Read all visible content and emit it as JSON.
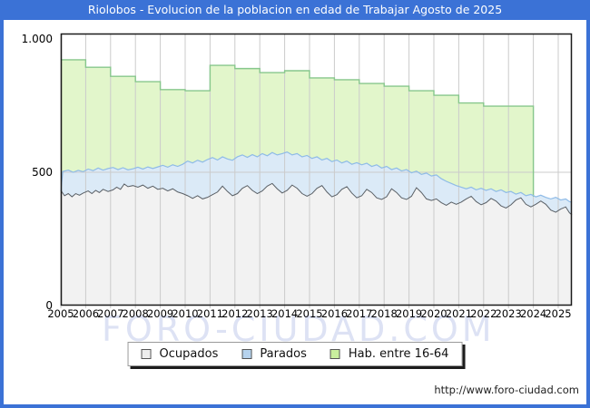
{
  "title": "Riolobos - Evolucion de la poblacion en edad de Trabajar Agosto de 2025",
  "watermark": "FORO-CIUDAD.COM",
  "footer_url": "http://www.foro-ciudad.com",
  "colors": {
    "titlebar_bg": "#3b72d6",
    "frame_border": "#3b72d6",
    "grid": "#cbcbcb",
    "plot_border": "#1a1a1a",
    "watermark_text": "#dde2f4",
    "hab_fill": "#e2f6cb",
    "hab_stroke": "#87c78c",
    "parados_fill": "#dbeaf7",
    "parados_stroke": "#8fbbe7",
    "ocupados_fill": "#f2f2f2",
    "ocupados_stroke": "#5a6066",
    "legend_swatch_ocupados": "#ededed",
    "legend_swatch_parados": "#b6d3ee",
    "legend_swatch_hab": "#c9ef9e"
  },
  "chart_data": {
    "type": "area",
    "title": "Riolobos - Evolucion de la poblacion en edad de Trabajar Agosto de 2025",
    "xlabel": "",
    "ylabel": "",
    "x_domain": [
      2005,
      2025.55
    ],
    "ylim": [
      0,
      1020
    ],
    "grid": "vertical-per-year-plus-500-line",
    "legend_position": "bottom-center",
    "y_ticks": [
      {
        "value": 0,
        "label": "0"
      },
      {
        "value": 500,
        "label": "500"
      },
      {
        "value": 1000,
        "label": "1.000"
      }
    ],
    "x_tick_years": [
      "2005",
      "2006",
      "2007",
      "2008",
      "2009",
      "2010",
      "2011",
      "2012",
      "2013",
      "2014",
      "2015",
      "2016",
      "2017",
      "2018",
      "2019",
      "2020",
      "2021",
      "2022",
      "2023",
      "2024",
      "2025"
    ],
    "legend": [
      {
        "label": "Ocupados"
      },
      {
        "label": "Parados"
      },
      {
        "label": "Hab. entre 16-64"
      }
    ],
    "series": {
      "hab_16_64": {
        "name": "Hab. entre 16-64",
        "style": "yearly-steps",
        "ends_at_year": 2024,
        "years": [
          2005,
          2006,
          2007,
          2008,
          2009,
          2010,
          2011,
          2012,
          2013,
          2014,
          2015,
          2016,
          2017,
          2018,
          2019,
          2020,
          2021,
          2022,
          2023
        ],
        "values": [
          922,
          894,
          860,
          840,
          810,
          806,
          901,
          889,
          874,
          881,
          854,
          847,
          833,
          823,
          806,
          789,
          760,
          748,
          748
        ]
      },
      "ocupados_mas_parados": {
        "name": "Parados (top of stacked band: Ocupados + Parados)",
        "style": "monthly-line",
        "points": [
          [
            2005.0,
            430
          ],
          [
            2005.08,
            503
          ],
          [
            2005.3,
            508
          ],
          [
            2005.5,
            500
          ],
          [
            2005.7,
            507
          ],
          [
            2005.9,
            502
          ],
          [
            2006.1,
            512
          ],
          [
            2006.3,
            506
          ],
          [
            2006.5,
            516
          ],
          [
            2006.7,
            508
          ],
          [
            2006.9,
            514
          ],
          [
            2007.1,
            518
          ],
          [
            2007.3,
            510
          ],
          [
            2007.5,
            517
          ],
          [
            2007.7,
            509
          ],
          [
            2007.9,
            513
          ],
          [
            2008.1,
            519
          ],
          [
            2008.3,
            512
          ],
          [
            2008.5,
            520
          ],
          [
            2008.7,
            514
          ],
          [
            2008.9,
            520
          ],
          [
            2009.1,
            526
          ],
          [
            2009.3,
            519
          ],
          [
            2009.5,
            528
          ],
          [
            2009.7,
            522
          ],
          [
            2009.9,
            530
          ],
          [
            2010.1,
            542
          ],
          [
            2010.3,
            535
          ],
          [
            2010.5,
            545
          ],
          [
            2010.7,
            538
          ],
          [
            2010.9,
            548
          ],
          [
            2011.1,
            555
          ],
          [
            2011.3,
            546
          ],
          [
            2011.5,
            558
          ],
          [
            2011.7,
            550
          ],
          [
            2011.9,
            545
          ],
          [
            2012.1,
            558
          ],
          [
            2012.3,
            565
          ],
          [
            2012.5,
            556
          ],
          [
            2012.7,
            566
          ],
          [
            2012.9,
            558
          ],
          [
            2013.1,
            570
          ],
          [
            2013.3,
            562
          ],
          [
            2013.5,
            574
          ],
          [
            2013.7,
            565
          ],
          [
            2013.9,
            570
          ],
          [
            2014.1,
            576
          ],
          [
            2014.3,
            565
          ],
          [
            2014.5,
            570
          ],
          [
            2014.7,
            558
          ],
          [
            2014.9,
            563
          ],
          [
            2015.1,
            552
          ],
          [
            2015.3,
            558
          ],
          [
            2015.5,
            546
          ],
          [
            2015.7,
            552
          ],
          [
            2015.9,
            540
          ],
          [
            2016.1,
            546
          ],
          [
            2016.3,
            535
          ],
          [
            2016.5,
            542
          ],
          [
            2016.7,
            530
          ],
          [
            2016.9,
            536
          ],
          [
            2017.1,
            528
          ],
          [
            2017.3,
            534
          ],
          [
            2017.5,
            522
          ],
          [
            2017.7,
            528
          ],
          [
            2017.9,
            516
          ],
          [
            2018.1,
            522
          ],
          [
            2018.3,
            510
          ],
          [
            2018.5,
            516
          ],
          [
            2018.7,
            505
          ],
          [
            2018.9,
            510
          ],
          [
            2019.1,
            498
          ],
          [
            2019.3,
            504
          ],
          [
            2019.5,
            492
          ],
          [
            2019.7,
            497
          ],
          [
            2019.9,
            486
          ],
          [
            2020.1,
            490
          ],
          [
            2020.3,
            476
          ],
          [
            2020.5,
            466
          ],
          [
            2020.7,
            458
          ],
          [
            2020.9,
            450
          ],
          [
            2021.1,
            444
          ],
          [
            2021.3,
            438
          ],
          [
            2021.5,
            444
          ],
          [
            2021.7,
            434
          ],
          [
            2021.9,
            440
          ],
          [
            2022.1,
            432
          ],
          [
            2022.3,
            438
          ],
          [
            2022.5,
            428
          ],
          [
            2022.7,
            434
          ],
          [
            2022.9,
            424
          ],
          [
            2023.1,
            428
          ],
          [
            2023.3,
            418
          ],
          [
            2023.5,
            424
          ],
          [
            2023.7,
            412
          ],
          [
            2023.9,
            417
          ],
          [
            2024.1,
            408
          ],
          [
            2024.3,
            414
          ],
          [
            2024.5,
            406
          ],
          [
            2024.7,
            400
          ],
          [
            2024.9,
            406
          ],
          [
            2025.1,
            396
          ],
          [
            2025.3,
            400
          ],
          [
            2025.45,
            390
          ],
          [
            2025.55,
            387
          ]
        ]
      },
      "ocupados": {
        "name": "Ocupados",
        "style": "monthly-line",
        "points": [
          [
            2005.0,
            432
          ],
          [
            2005.15,
            412
          ],
          [
            2005.3,
            420
          ],
          [
            2005.45,
            408
          ],
          [
            2005.6,
            420
          ],
          [
            2005.75,
            414
          ],
          [
            2005.9,
            422
          ],
          [
            2006.1,
            430
          ],
          [
            2006.25,
            420
          ],
          [
            2006.4,
            432
          ],
          [
            2006.55,
            424
          ],
          [
            2006.7,
            436
          ],
          [
            2006.9,
            428
          ],
          [
            2007.1,
            434
          ],
          [
            2007.25,
            444
          ],
          [
            2007.4,
            436
          ],
          [
            2007.55,
            456
          ],
          [
            2007.7,
            446
          ],
          [
            2007.9,
            450
          ],
          [
            2008.1,
            444
          ],
          [
            2008.3,
            452
          ],
          [
            2008.5,
            440
          ],
          [
            2008.7,
            448
          ],
          [
            2008.9,
            436
          ],
          [
            2009.1,
            440
          ],
          [
            2009.3,
            430
          ],
          [
            2009.5,
            438
          ],
          [
            2009.7,
            426
          ],
          [
            2009.9,
            420
          ],
          [
            2010.1,
            412
          ],
          [
            2010.3,
            402
          ],
          [
            2010.5,
            412
          ],
          [
            2010.7,
            400
          ],
          [
            2010.9,
            406
          ],
          [
            2011.1,
            416
          ],
          [
            2011.3,
            426
          ],
          [
            2011.5,
            448
          ],
          [
            2011.7,
            428
          ],
          [
            2011.9,
            412
          ],
          [
            2012.1,
            420
          ],
          [
            2012.3,
            440
          ],
          [
            2012.5,
            450
          ],
          [
            2012.7,
            432
          ],
          [
            2012.9,
            420
          ],
          [
            2013.1,
            430
          ],
          [
            2013.3,
            448
          ],
          [
            2013.5,
            458
          ],
          [
            2013.7,
            438
          ],
          [
            2013.9,
            422
          ],
          [
            2014.1,
            432
          ],
          [
            2014.3,
            452
          ],
          [
            2014.5,
            440
          ],
          [
            2014.7,
            420
          ],
          [
            2014.9,
            410
          ],
          [
            2015.1,
            420
          ],
          [
            2015.3,
            440
          ],
          [
            2015.5,
            450
          ],
          [
            2015.7,
            426
          ],
          [
            2015.9,
            408
          ],
          [
            2016.1,
            416
          ],
          [
            2016.3,
            436
          ],
          [
            2016.5,
            446
          ],
          [
            2016.7,
            422
          ],
          [
            2016.9,
            404
          ],
          [
            2017.1,
            412
          ],
          [
            2017.3,
            436
          ],
          [
            2017.5,
            424
          ],
          [
            2017.7,
            404
          ],
          [
            2017.9,
            398
          ],
          [
            2018.1,
            408
          ],
          [
            2018.3,
            438
          ],
          [
            2018.5,
            424
          ],
          [
            2018.7,
            404
          ],
          [
            2018.9,
            398
          ],
          [
            2019.1,
            410
          ],
          [
            2019.3,
            442
          ],
          [
            2019.5,
            424
          ],
          [
            2019.7,
            400
          ],
          [
            2019.9,
            394
          ],
          [
            2020.1,
            400
          ],
          [
            2020.3,
            386
          ],
          [
            2020.5,
            376
          ],
          [
            2020.7,
            388
          ],
          [
            2020.9,
            380
          ],
          [
            2021.1,
            388
          ],
          [
            2021.3,
            400
          ],
          [
            2021.5,
            410
          ],
          [
            2021.7,
            390
          ],
          [
            2021.9,
            378
          ],
          [
            2022.1,
            386
          ],
          [
            2022.3,
            402
          ],
          [
            2022.5,
            392
          ],
          [
            2022.7,
            374
          ],
          [
            2022.9,
            366
          ],
          [
            2023.1,
            378
          ],
          [
            2023.3,
            396
          ],
          [
            2023.5,
            404
          ],
          [
            2023.7,
            380
          ],
          [
            2023.9,
            370
          ],
          [
            2024.1,
            380
          ],
          [
            2024.3,
            392
          ],
          [
            2024.5,
            380
          ],
          [
            2024.7,
            358
          ],
          [
            2024.9,
            350
          ],
          [
            2025.1,
            362
          ],
          [
            2025.3,
            370
          ],
          [
            2025.45,
            348
          ],
          [
            2025.55,
            340
          ]
        ]
      }
    }
  }
}
